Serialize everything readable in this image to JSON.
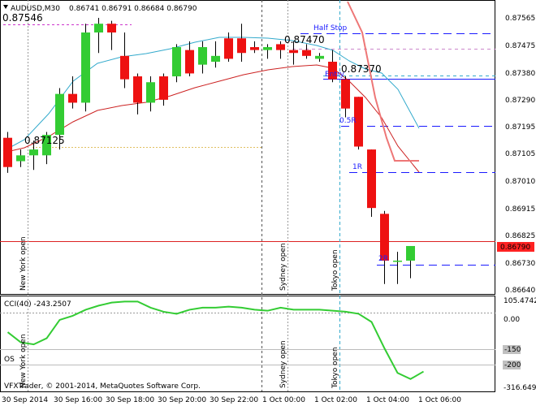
{
  "window": {
    "symbol_title": "AUDUSD,M30",
    "ohlc": "0.86741 0.86791 0.86684 0.86790",
    "copyright": "VFXTrader, © 2001-2014, MetaQuotes Software Corp."
  },
  "annotations": {
    "high_label": "0.87546",
    "mid_high_label": "0.87470",
    "entry_price_label": "0.87370",
    "low_label": "0.87125",
    "half_stop": "Half Stop",
    "entry": "Entry",
    "r_half": "0.5R",
    "r_one": "1R",
    "r_two": "2R",
    "sessions": [
      "New York open",
      "Sydney open",
      "Tokyo open"
    ]
  },
  "price_axis": [
    "0.87565",
    "0.87475",
    "0.87380",
    "0.87290",
    "0.87195",
    "0.87105",
    "0.87010",
    "0.86915",
    "0.86825",
    "0.86730",
    "0.86640"
  ],
  "current_price": "0.86790",
  "cci_panel": {
    "label": "CCI(40) -243.2507",
    "os_label": "OS",
    "axis": [
      "105.4742",
      "0.00",
      "-150",
      "-200",
      "-316.649"
    ]
  },
  "time_axis": [
    "30 Sep 2014",
    "30 Sep 16:00",
    "30 Sep 18:00",
    "30 Sep 20:00",
    "30 Sep 22:00",
    "1 Oct 00:00",
    "1 Oct 02:00",
    "1 Oct 04:00",
    "1 Oct 06:00"
  ],
  "chart_data": {
    "type": "candlestick",
    "title": "AUDUSD,M30",
    "price_range": [
      0.8664,
      0.8757
    ],
    "candles": [
      {
        "o": 0.8716,
        "h": 0.8718,
        "l": 0.8704,
        "c": 0.8706
      },
      {
        "o": 0.8708,
        "h": 0.8712,
        "l": 0.8706,
        "c": 0.871
      },
      {
        "o": 0.871,
        "h": 0.8715,
        "l": 0.8705,
        "c": 0.8712
      },
      {
        "o": 0.871,
        "h": 0.8718,
        "l": 0.8707,
        "c": 0.8717
      },
      {
        "o": 0.8717,
        "h": 0.8733,
        "l": 0.8712,
        "c": 0.8731
      },
      {
        "o": 0.8731,
        "h": 0.8737,
        "l": 0.8726,
        "c": 0.8728
      },
      {
        "o": 0.8728,
        "h": 0.8755,
        "l": 0.8725,
        "c": 0.8752
      },
      {
        "o": 0.8752,
        "h": 0.8757,
        "l": 0.8745,
        "c": 0.8755
      },
      {
        "o": 0.8755,
        "h": 0.8756,
        "l": 0.8746,
        "c": 0.8752
      },
      {
        "o": 0.8744,
        "h": 0.8752,
        "l": 0.8733,
        "c": 0.8736
      },
      {
        "o": 0.8737,
        "h": 0.8738,
        "l": 0.8724,
        "c": 0.8728
      },
      {
        "o": 0.8728,
        "h": 0.8737,
        "l": 0.8725,
        "c": 0.8735
      },
      {
        "o": 0.8737,
        "h": 0.8738,
        "l": 0.8727,
        "c": 0.8729
      },
      {
        "o": 0.8737,
        "h": 0.8748,
        "l": 0.8735,
        "c": 0.8747
      },
      {
        "o": 0.8746,
        "h": 0.8749,
        "l": 0.8737,
        "c": 0.8738
      },
      {
        "o": 0.8741,
        "h": 0.8749,
        "l": 0.8738,
        "c": 0.8747
      },
      {
        "o": 0.8742,
        "h": 0.8749,
        "l": 0.874,
        "c": 0.8744
      },
      {
        "o": 0.875,
        "h": 0.8752,
        "l": 0.8742,
        "c": 0.8743
      },
      {
        "o": 0.875,
        "h": 0.8755,
        "l": 0.8742,
        "c": 0.8745
      },
      {
        "o": 0.8747,
        "h": 0.8749,
        "l": 0.8745,
        "c": 0.8746
      },
      {
        "o": 0.8746,
        "h": 0.8748,
        "l": 0.8743,
        "c": 0.8747
      },
      {
        "o": 0.8748,
        "h": 0.8749,
        "l": 0.8743,
        "c": 0.8746
      },
      {
        "o": 0.8746,
        "h": 0.8749,
        "l": 0.8741,
        "c": 0.8745
      },
      {
        "o": 0.8746,
        "h": 0.8748,
        "l": 0.8743,
        "c": 0.8744
      },
      {
        "o": 0.8743,
        "h": 0.8745,
        "l": 0.8742,
        "c": 0.8744
      },
      {
        "o": 0.8742,
        "h": 0.8746,
        "l": 0.8735,
        "c": 0.8736
      },
      {
        "o": 0.8736,
        "h": 0.8737,
        "l": 0.8723,
        "c": 0.8726
      },
      {
        "o": 0.873,
        "h": 0.873,
        "l": 0.8712,
        "c": 0.8713
      },
      {
        "o": 0.8712,
        "h": 0.8712,
        "l": 0.8689,
        "c": 0.8692
      },
      {
        "o": 0.869,
        "h": 0.8691,
        "l": 0.8666,
        "c": 0.8674
      },
      {
        "o": 0.8674,
        "h": 0.8677,
        "l": 0.8666,
        "c": 0.8674
      },
      {
        "o": 0.8674,
        "h": 0.8679,
        "l": 0.8668,
        "c": 0.8679
      }
    ],
    "cci_range": [
      -316.649,
      105.4742
    ],
    "cci": [
      -50,
      -100,
      -110,
      -80,
      10,
      30,
      60,
      80,
      95,
      100,
      100,
      70,
      50,
      40,
      60,
      70,
      70,
      75,
      70,
      60,
      55,
      70,
      60,
      60,
      60,
      55,
      50,
      40,
      0,
      -130,
      -250,
      -280,
      -243.2507
    ]
  }
}
